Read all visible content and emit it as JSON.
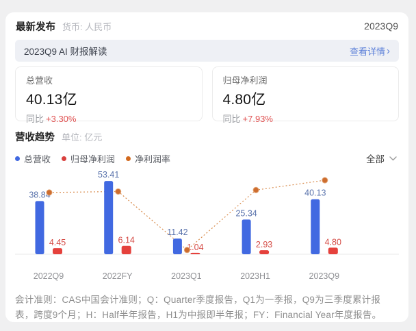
{
  "header": {
    "title": "最新发布",
    "currency_label": "货币: 人民币",
    "period": "2023Q9"
  },
  "banner": {
    "text": "2023Q9 AI 财报解读",
    "link_label": "查看详情",
    "icons": {
      "chevron_right": "›"
    }
  },
  "kpi_cards": [
    {
      "label": "总营收",
      "value": "40.13",
      "unit": "亿",
      "yoy_label": "同比",
      "yoy_value": "+3.30%"
    },
    {
      "label": "归母净利润",
      "value": "4.80",
      "unit": "亿",
      "yoy_label": "同比",
      "yoy_value": "+7.93%"
    }
  ],
  "chart_section": {
    "title": "营收趋势",
    "unit_label": "单位: 亿元",
    "legend": [
      {
        "label": "总营收",
        "color": "#4169e1"
      },
      {
        "label": "归母净利润",
        "color": "#d9403d"
      },
      {
        "label": "净利润率",
        "color": "#d2691e"
      }
    ],
    "filter_label": "全部"
  },
  "chart_data": {
    "type": "bar",
    "categories": [
      "2022Q9",
      "2022FY",
      "2023Q1",
      "2023H1",
      "2023Q9"
    ],
    "series": [
      {
        "name": "总营收",
        "type": "bar",
        "color": "#4169e1",
        "label_color": "#5a73ac",
        "values": [
          38.84,
          53.41,
          11.42,
          25.34,
          40.13
        ]
      },
      {
        "name": "归母净利润",
        "type": "bar",
        "color": "#e5413c",
        "label_color": "#d54b45",
        "values": [
          4.45,
          6.14,
          1.04,
          2.93,
          4.8
        ]
      },
      {
        "name": "净利润率",
        "type": "line",
        "color": "#cd6d2f",
        "line_color": "#d98d4f",
        "values_percent": [
          11.46,
          11.5,
          9.11,
          11.56,
          11.96
        ]
      }
    ],
    "ylabel": "亿元",
    "value_labels_shown": true,
    "grid": false,
    "legend_position": "top-left"
  },
  "footnote": "会计准则：CAS中国会计准则；Q：Quarter季度报告，Q1为一季报，Q9为三季度累计报表，跨度9个月；H：Half半年报告，H1为中报即半年报；FY：Financial Year年度报告。"
}
